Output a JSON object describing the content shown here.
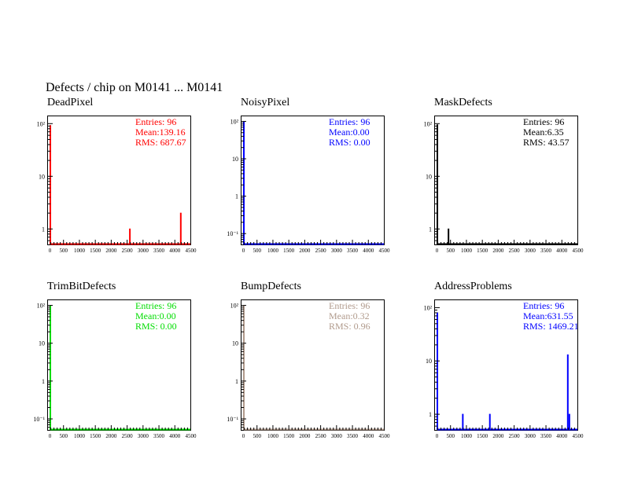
{
  "page": {
    "title": "Defects / chip on M0141 ... M0141"
  },
  "chart_data": [
    {
      "type": "bar",
      "title": "DeadPixel",
      "color": "#ff0000",
      "stats": {
        "entries": "Entries:  96",
        "mean": "Mean:139.16",
        "rms": "RMS:  687.67"
      },
      "xlim": [
        0,
        4500
      ],
      "xticks": [
        0,
        500,
        1000,
        1500,
        2000,
        2500,
        3000,
        3500,
        4000,
        4500
      ],
      "xtick_labels": [
        "0",
        "500",
        "1000",
        "1500",
        "2000",
        "2500",
        "3000",
        "3500",
        "4000",
        "4500"
      ],
      "yscale": "log",
      "ylim": [
        0.5,
        140
      ],
      "yticks": [
        1,
        10,
        100
      ],
      "ytick_labels": [
        "1",
        "10",
        "10²"
      ],
      "points": [
        {
          "x": 0,
          "y": 92
        },
        {
          "x": 2500,
          "y": 1
        },
        {
          "x": 4100,
          "y": 2
        }
      ]
    },
    {
      "type": "bar",
      "title": "NoisyPixel",
      "color": "#0000ff",
      "stats": {
        "entries": "Entries:  96",
        "mean": "Mean:0.00",
        "rms": "RMS:  0.00"
      },
      "xlim": [
        0,
        4500
      ],
      "xticks": [
        0,
        500,
        1000,
        1500,
        2000,
        2500,
        3000,
        3500,
        4000,
        4500
      ],
      "xtick_labels": [
        "0",
        "500",
        "1000",
        "1500",
        "2000",
        "2500",
        "3000",
        "3500",
        "4000",
        "4500"
      ],
      "yscale": "log",
      "ylim": [
        0.05,
        140
      ],
      "yticks": [
        0.1,
        1,
        10,
        100
      ],
      "ytick_labels": [
        "10⁻¹",
        "1",
        "10",
        "10²"
      ],
      "points": [
        {
          "x": 0,
          "y": 96
        }
      ]
    },
    {
      "type": "bar",
      "title": "MaskDefects",
      "color": "#000000",
      "stats": {
        "entries": "Entries:  96",
        "mean": "Mean:6.35",
        "rms": "RMS:  43.57"
      },
      "xlim": [
        0,
        4500
      ],
      "xticks": [
        0,
        500,
        1000,
        1500,
        2000,
        2500,
        3000,
        3500,
        4000,
        4500
      ],
      "xtick_labels": [
        "0",
        "500",
        "1000",
        "1500",
        "2000",
        "2500",
        "3000",
        "3500",
        "4000",
        "4500"
      ],
      "yscale": "log",
      "ylim": [
        0.5,
        140
      ],
      "yticks": [
        1,
        10,
        100
      ],
      "ytick_labels": [
        "1",
        "10",
        "10²"
      ],
      "points": [
        {
          "x": 0,
          "y": 95
        },
        {
          "x": 350,
          "y": 1
        }
      ]
    },
    {
      "type": "bar",
      "title": "TrimBitDefects",
      "color": "#00dd00",
      "stats": {
        "entries": "Entries:  96",
        "mean": "Mean:0.00",
        "rms": "RMS:  0.00"
      },
      "xlim": [
        0,
        4500
      ],
      "xticks": [
        0,
        500,
        1000,
        1500,
        2000,
        2500,
        3000,
        3500,
        4000,
        4500
      ],
      "xtick_labels": [
        "0",
        "500",
        "1000",
        "1500",
        "2000",
        "2500",
        "3000",
        "3500",
        "4000",
        "4500"
      ],
      "yscale": "log",
      "ylim": [
        0.05,
        140
      ],
      "yticks": [
        0.1,
        1,
        10,
        100
      ],
      "ytick_labels": [
        "10⁻¹",
        "1",
        "10",
        "10²"
      ],
      "points": [
        {
          "x": 0,
          "y": 96
        }
      ]
    },
    {
      "type": "bar",
      "title": "BumpDefects",
      "color": "#b09a8c",
      "stats": {
        "entries": "Entries:  96",
        "mean": "Mean:0.32",
        "rms": "RMS:  0.96"
      },
      "xlim": [
        0,
        4500
      ],
      "xticks": [
        0,
        500,
        1000,
        1500,
        2000,
        2500,
        3000,
        3500,
        4000,
        4500
      ],
      "xtick_labels": [
        "0",
        "500",
        "1000",
        "1500",
        "2000",
        "2500",
        "3000",
        "3500",
        "4000",
        "4500"
      ],
      "yscale": "log",
      "ylim": [
        0.05,
        140
      ],
      "yticks": [
        0.1,
        1,
        10,
        100
      ],
      "ytick_labels": [
        "10⁻¹",
        "1",
        "10",
        "10²"
      ],
      "points": [
        {
          "x": 0,
          "y": 96
        }
      ]
    },
    {
      "type": "bar",
      "title": "AddressProblems",
      "color": "#0000ff",
      "stats": {
        "entries": "Entries:  96",
        "mean": "Mean:631.55",
        "rms": "RMS:  1469.21"
      },
      "xlim": [
        0,
        4500
      ],
      "xticks": [
        0,
        500,
        1000,
        1500,
        2000,
        2500,
        3000,
        3500,
        4000,
        4500
      ],
      "xtick_labels": [
        "0",
        "500",
        "1000",
        "1500",
        "2000",
        "2500",
        "3000",
        "3500",
        "4000",
        "4500"
      ],
      "yscale": "log",
      "ylim": [
        0.5,
        140
      ],
      "yticks": [
        1,
        10,
        100
      ],
      "ytick_labels": [
        "1",
        "10",
        "10²"
      ],
      "points": [
        {
          "x": 0,
          "y": 80
        },
        {
          "x": 800,
          "y": 1
        },
        {
          "x": 1650,
          "y": 1
        },
        {
          "x": 4100,
          "y": 13
        },
        {
          "x": 4150,
          "y": 1
        }
      ]
    }
  ]
}
